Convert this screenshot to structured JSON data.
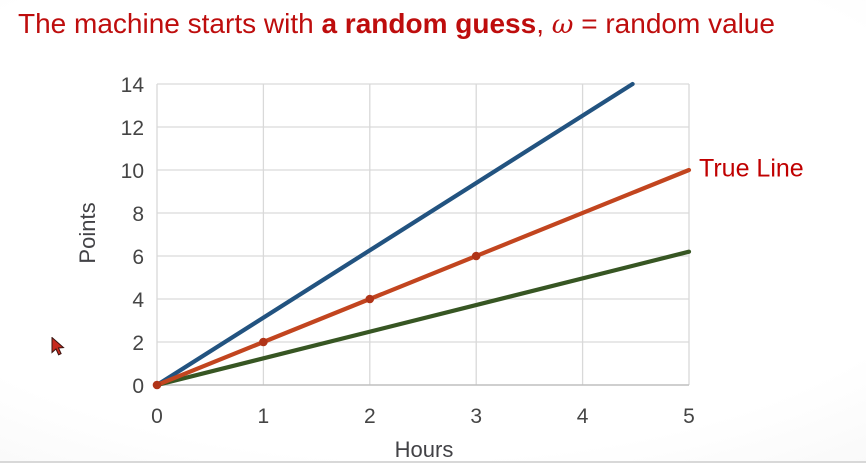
{
  "title": {
    "part1": "The machine starts with ",
    "bold": "a random guess",
    "part2": ", ",
    "omega": "ω",
    "part3": " = random value",
    "color": "#be0d0d"
  },
  "cursor": {
    "icon": "red-arrow-pointer-icon"
  },
  "chart_data": {
    "type": "line",
    "title": "",
    "xlabel": "Hours",
    "ylabel": "Points",
    "xlim": [
      0,
      5
    ],
    "ylim": [
      0,
      14
    ],
    "xticks": [
      0,
      1,
      2,
      3,
      4,
      5
    ],
    "yticks": [
      0,
      2,
      4,
      6,
      8,
      10,
      12,
      14
    ],
    "grid": true,
    "grid_color": "#d9d9d9",
    "axis_color": "#bfbfbf",
    "tick_color": "#454545",
    "annotation": {
      "text": "True Line",
      "color": "#c00000",
      "anchor_series": "true-line"
    },
    "series": [
      {
        "name": "initial-guess-line",
        "color": "#225380",
        "x": [
          0,
          4.47
        ],
        "y": [
          0,
          14
        ]
      },
      {
        "name": "low-guess-line",
        "color": "#375623",
        "x": [
          0,
          5
        ],
        "y": [
          0,
          6.2
        ]
      },
      {
        "name": "true-line",
        "color": "#c2451f",
        "x": [
          0,
          5
        ],
        "y": [
          0,
          10
        ],
        "marker_color": "#b03418",
        "marker_points": [
          [
            0,
            0
          ],
          [
            1,
            2
          ],
          [
            2,
            4
          ],
          [
            3,
            6
          ]
        ]
      }
    ]
  }
}
